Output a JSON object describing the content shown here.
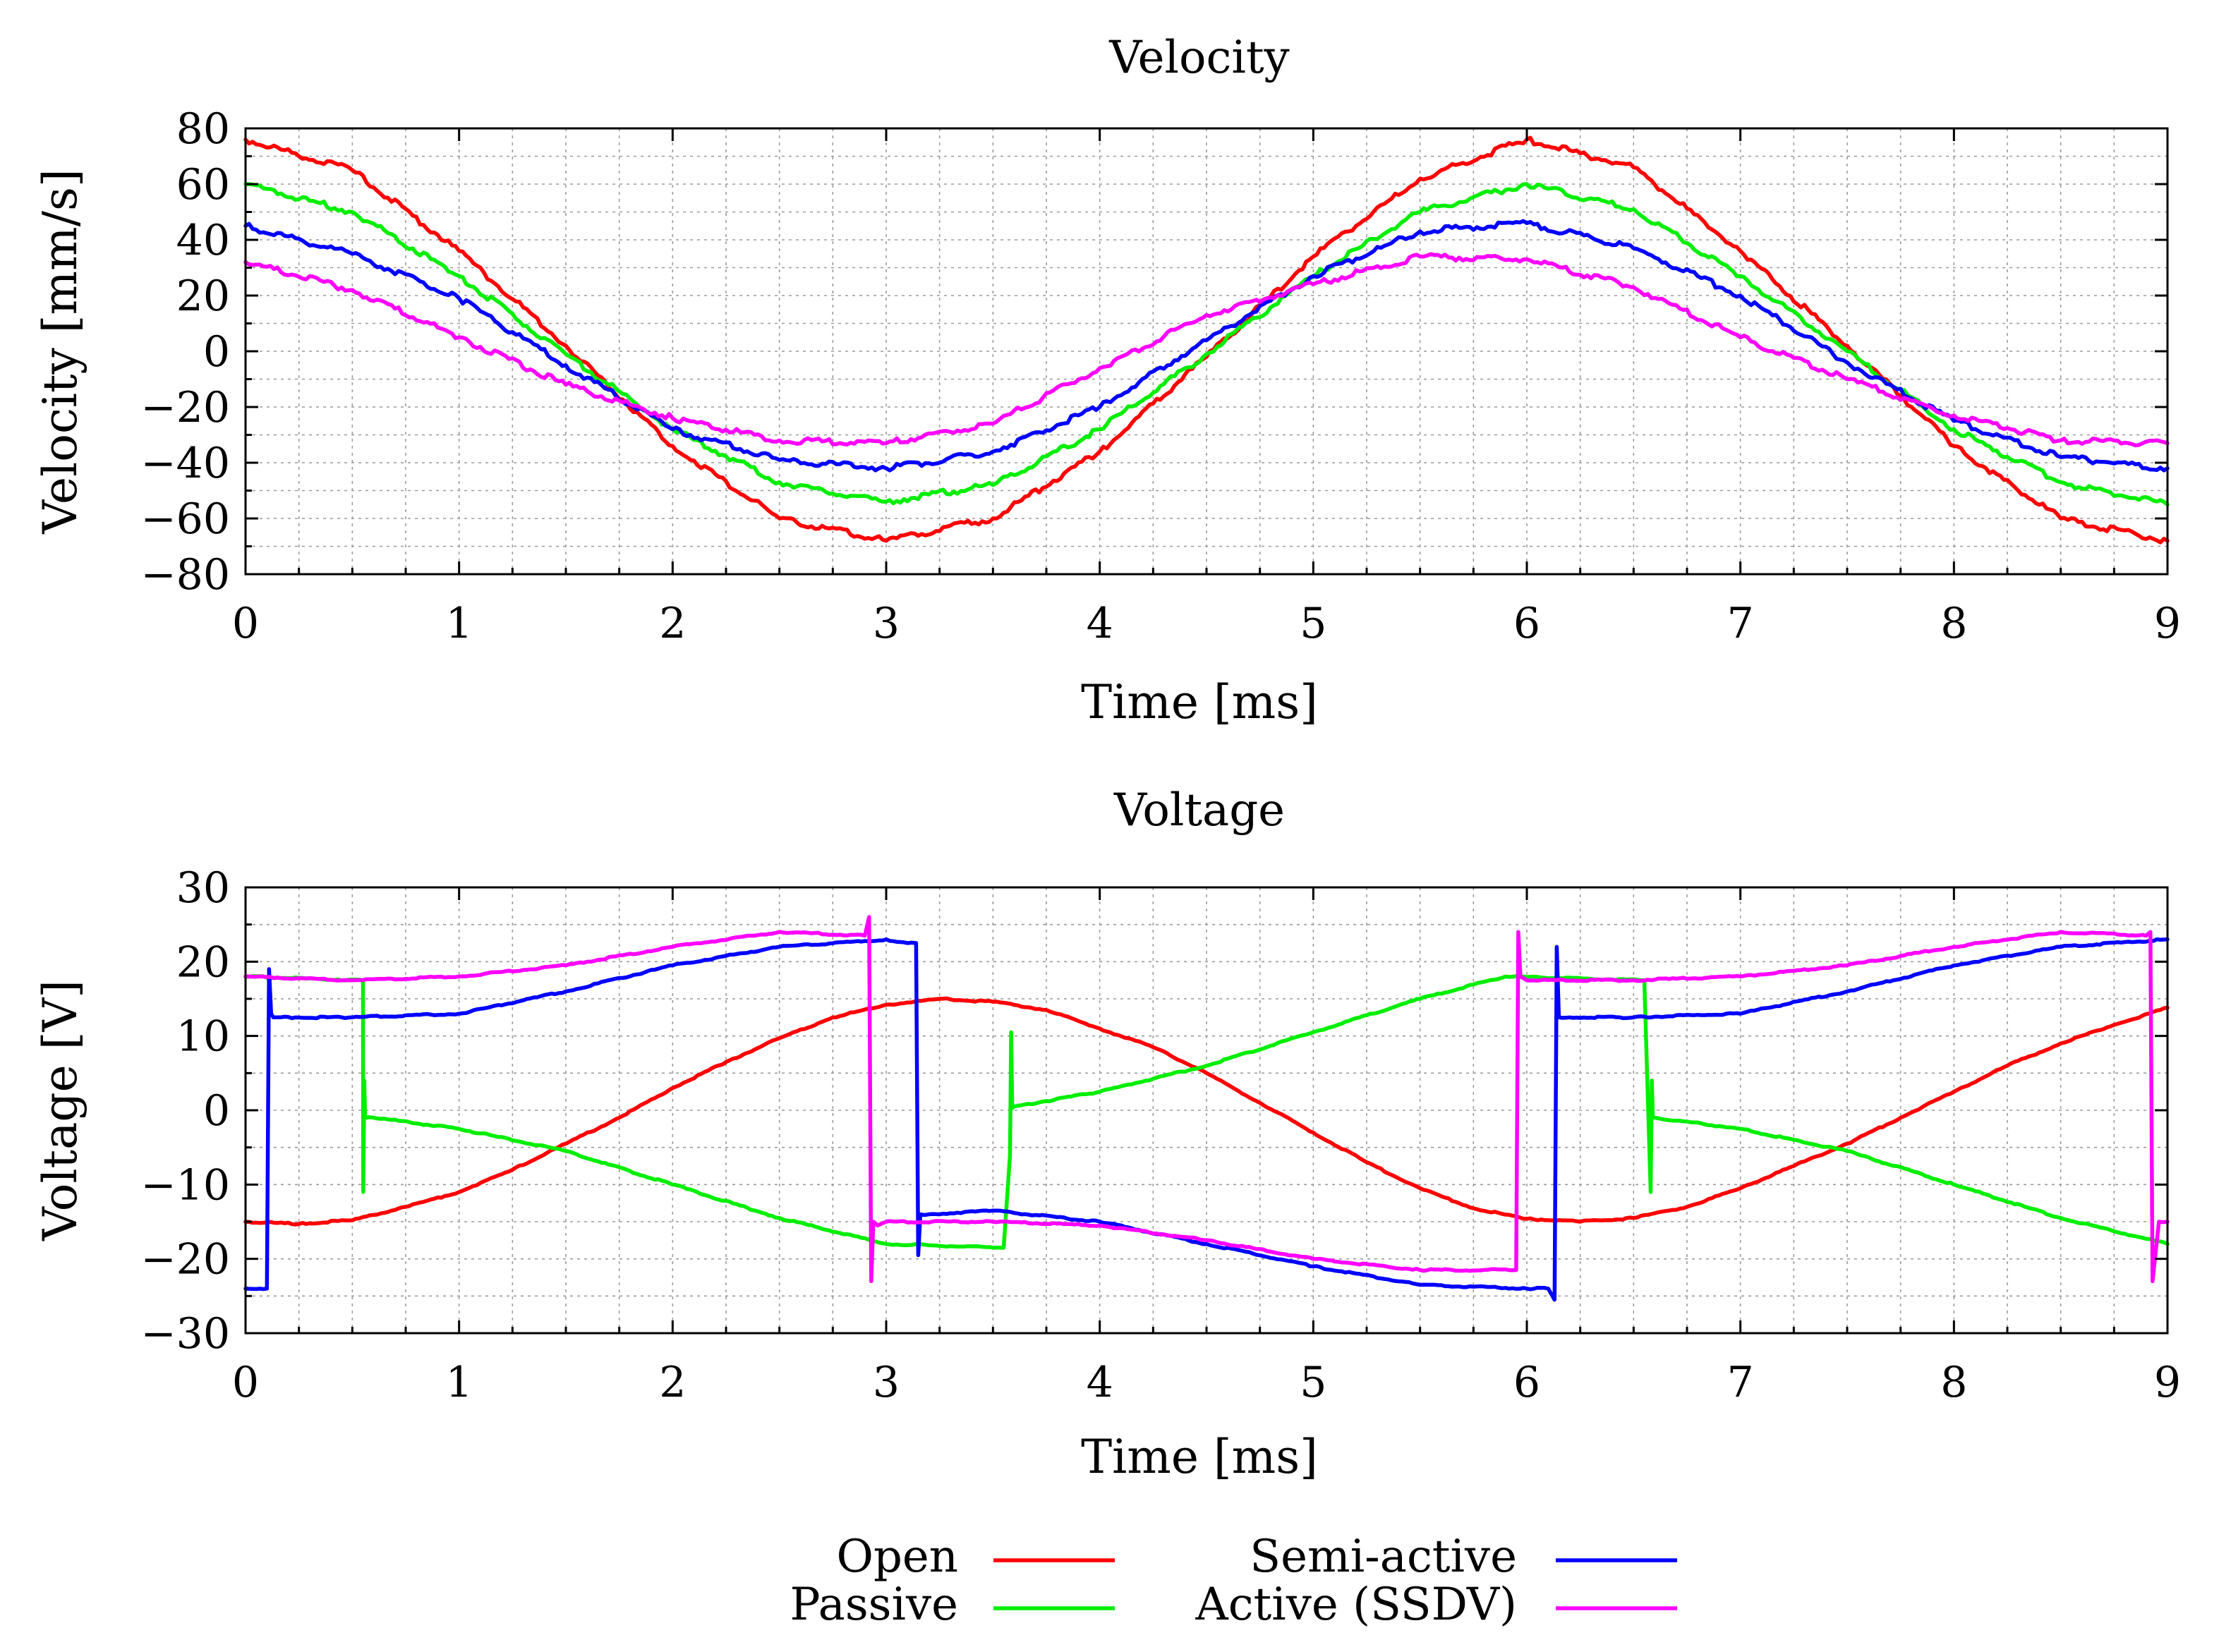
{
  "colors": {
    "open": "#ff0000",
    "passive": "#00ee00",
    "semi_active": "#0000ff",
    "active_ssdv": "#ff00ff"
  },
  "legend": {
    "open": "Open",
    "passive": "Passive",
    "semi_active": "Semi-active",
    "active_ssdv": "Active (SSDV)"
  },
  "chart_data": [
    {
      "type": "line",
      "title": "Velocity",
      "xlabel": "Time [ms]",
      "ylabel": "Velocity [mm/s]",
      "xlim": [
        0,
        9
      ],
      "ylim": [
        -80,
        80
      ],
      "xticks": [
        "0",
        "1",
        "2",
        "3",
        "4",
        "5",
        "6",
        "7",
        "8",
        "9"
      ],
      "yticks": [
        "80",
        "60",
        "40",
        "20",
        "0",
        "−20",
        "−40",
        "−60",
        "−80"
      ],
      "grid": true,
      "series": [
        {
          "key": "open",
          "name": "Open",
          "x": [
            0,
            0.5,
            1,
            1.5,
            2,
            2.5,
            3,
            3.5,
            4,
            4.5,
            5,
            5.5,
            6,
            6.5,
            7,
            7.5,
            8,
            8.5,
            9
          ],
          "values": [
            76,
            65,
            36,
            2,
            -34,
            -60,
            -68,
            -60,
            -36,
            -2,
            34,
            62,
            76,
            66,
            36,
            2,
            -34,
            -60,
            -68
          ]
        },
        {
          "key": "passive",
          "name": "Passive",
          "x": [
            0,
            0.5,
            1,
            1.5,
            2,
            2.5,
            3,
            3.5,
            4,
            4.5,
            5,
            5.5,
            6,
            6.5,
            7,
            7.5,
            8,
            8.5,
            9
          ],
          "values": [
            60,
            50,
            27,
            -1,
            -28,
            -47,
            -54,
            -48,
            -28,
            -1,
            27,
            50,
            60,
            51,
            27,
            0,
            -28,
            -47,
            -55
          ]
        },
        {
          "key": "semi_active",
          "name": "Semi-active",
          "x": [
            0,
            0.5,
            1,
            1.5,
            2,
            2.5,
            3,
            3.5,
            4,
            4.5,
            5,
            5.5,
            6,
            6.5,
            7,
            7.5,
            8,
            8.5,
            9
          ],
          "values": [
            45,
            35,
            19,
            -5,
            -28,
            -39,
            -42,
            -36,
            -20,
            4,
            27,
            43,
            46,
            37,
            20,
            -4,
            -25,
            -38,
            -42
          ]
        },
        {
          "key": "active_ssdv",
          "name": "Active (SSDV)",
          "x": [
            0,
            0.5,
            1,
            1.5,
            2,
            2.5,
            3,
            3.5,
            4,
            4.5,
            5,
            5.5,
            6,
            6.5,
            7,
            7.5,
            8,
            8.5,
            9
          ],
          "values": [
            32,
            22,
            5,
            -12,
            -24,
            -32,
            -33,
            -26,
            -6,
            13,
            24,
            34,
            33,
            23,
            5,
            -10,
            -23,
            -32,
            -33
          ]
        }
      ]
    },
    {
      "type": "line",
      "title": "Voltage",
      "xlabel": "Time [ms]",
      "ylabel": "Voltage [V]",
      "xlim": [
        0,
        9
      ],
      "ylim": [
        -30,
        30
      ],
      "xticks": [
        "0",
        "1",
        "2",
        "3",
        "4",
        "5",
        "6",
        "7",
        "8",
        "9"
      ],
      "yticks": [
        "30",
        "20",
        "10",
        "0",
        "−10",
        "−20",
        "−30"
      ],
      "grid": true,
      "series": [
        {
          "key": "open",
          "name": "Open",
          "x": [
            0,
            0.25,
            0.5,
            0.75,
            1,
            1.25,
            1.5,
            1.75,
            2,
            2.25,
            2.5,
            2.75,
            3,
            3.25,
            3.5,
            3.75,
            4,
            4.25,
            4.5,
            4.75,
            5,
            5.25,
            5.5,
            5.75,
            6,
            6.25,
            6.5,
            6.75,
            7,
            7.25,
            7.5,
            7.75,
            8,
            8.25,
            8.5,
            8.75,
            9
          ],
          "values": [
            -15,
            -15.3,
            -14.8,
            -13,
            -11,
            -8,
            -4.5,
            -1,
            3,
            6.5,
            9.7,
            12.5,
            14.2,
            15,
            14.6,
            13.5,
            11,
            8.5,
            5,
            1,
            -3,
            -7,
            -10.5,
            -13.2,
            -14.6,
            -15,
            -14.5,
            -13,
            -10.5,
            -7.5,
            -4.5,
            -1,
            2.5,
            6,
            9,
            11.5,
            13.8
          ]
        },
        {
          "key": "passive",
          "name": "Passive",
          "x": [
            0,
            0.55,
            0.551,
            0.556,
            0.56,
            0.6,
            1,
            1.5,
            2,
            2.5,
            3,
            3.55,
            3.58,
            3.585,
            3.59,
            3.6,
            4,
            4.5,
            5,
            5.5,
            5.9,
            6.55,
            6.58,
            6.585,
            6.59,
            6.6,
            7,
            7.5,
            8,
            8.5,
            9
          ],
          "values": [
            18,
            17.5,
            -11,
            4,
            -1,
            -1,
            -2.5,
            -5.5,
            -10,
            -14.5,
            -18,
            -18.5,
            -6,
            10.5,
            0.3,
            0.5,
            2.5,
            6,
            10.5,
            15,
            18,
            17.5,
            -11,
            4,
            -1,
            -1,
            -2.5,
            -5.5,
            -10,
            -14.5,
            -18
          ]
        },
        {
          "key": "semi_active",
          "name": "Semi-active",
          "x": [
            0,
            0.1,
            0.11,
            0.12,
            0.13,
            0.15,
            0.5,
            1,
            1.5,
            2,
            2.5,
            3,
            3.1,
            3.14,
            3.15,
            3.16,
            3.2,
            3.5,
            4,
            4.5,
            5,
            5.5,
            6,
            6.1,
            6.13,
            6.14,
            6.15,
            6.2,
            6.5,
            7,
            7.5,
            8,
            8.5,
            9
          ],
          "values": [
            -24,
            -24,
            19,
            13,
            12.5,
            12.5,
            12.5,
            13,
            16,
            19.5,
            22,
            23,
            22.5,
            22.5,
            -19.5,
            -14,
            -14,
            -13.5,
            -15,
            -18,
            -21,
            -23.5,
            -24,
            -24,
            -25.5,
            22,
            12.5,
            12.5,
            12.5,
            13,
            16,
            19.5,
            22,
            23
          ]
        },
        {
          "key": "active_ssdv",
          "name": "Active (SSDV)",
          "x": [
            0,
            0.5,
            1,
            1.5,
            2,
            2.5,
            2.9,
            2.92,
            2.93,
            2.94,
            2.96,
            3,
            3.5,
            4,
            4.5,
            5,
            5.5,
            5.95,
            5.96,
            5.97,
            6,
            6.5,
            7,
            7.5,
            8,
            8.5,
            8.9,
            8.92,
            8.93,
            8.96,
            9
          ],
          "values": [
            18,
            17.5,
            18,
            19.5,
            22,
            24,
            23.5,
            26,
            -23,
            -15,
            -15.5,
            -15,
            -15,
            -15.5,
            -17.5,
            -20,
            -21.5,
            -21.5,
            24,
            18,
            17.5,
            17.5,
            18,
            19.5,
            22,
            24,
            23.5,
            24,
            -23,
            -15,
            -15
          ]
        }
      ]
    }
  ]
}
